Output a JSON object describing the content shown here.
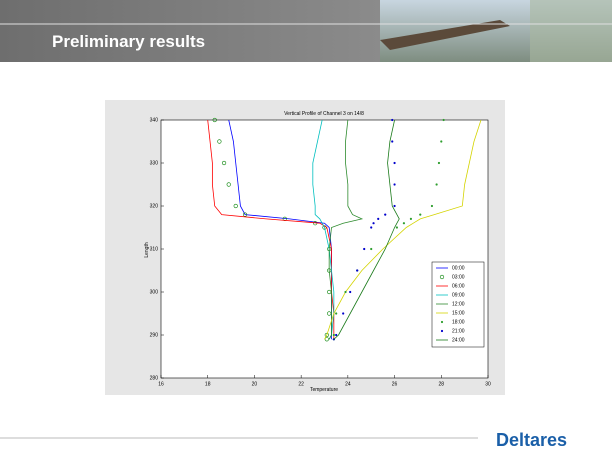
{
  "header": {
    "title": "Preliminary results"
  },
  "footer": {
    "logo": "Deltares"
  },
  "chart_data": {
    "type": "line",
    "title": "Vertical Profile of Channel 3 on 14/8",
    "x_label": "Temperature",
    "y_label": "Length",
    "y": [
      289,
      290,
      295,
      300,
      305,
      310,
      315,
      316,
      317,
      318,
      320,
      325,
      330,
      335,
      340
    ],
    "series": [
      {
        "name": "00:00",
        "color": "#0000ff",
        "marker": "none",
        "values": [
          23.3,
          23.3,
          23.3,
          23.3,
          23.3,
          23.3,
          23.2,
          23.0,
          21.5,
          19.6,
          19.4,
          19.3,
          19.2,
          19.1,
          18.9
        ]
      },
      {
        "name": "03:00",
        "color": "#008000",
        "marker": "o",
        "values": [
          23.1,
          23.1,
          23.2,
          23.2,
          23.2,
          23.2,
          23.0,
          22.6,
          21.3,
          19.6,
          19.2,
          18.9,
          18.7,
          18.5,
          18.3
        ]
      },
      {
        "name": "06:00",
        "color": "#ff0000",
        "marker": "none",
        "values": [
          23.4,
          23.4,
          23.4,
          23.3,
          23.3,
          23.3,
          23.1,
          22.8,
          20.5,
          18.6,
          18.3,
          18.2,
          18.2,
          18.1,
          18.0
        ]
      },
      {
        "name": "09:00",
        "color": "#00bfbf",
        "marker": "none",
        "values": [
          23.2,
          23.3,
          23.4,
          23.4,
          23.3,
          23.2,
          23.0,
          22.9,
          22.8,
          22.6,
          22.6,
          22.5,
          22.5,
          22.7,
          22.9
        ]
      },
      {
        "name": "12:00",
        "color": "#2e8b2e",
        "marker": "none",
        "values": [
          23.2,
          23.3,
          23.3,
          23.3,
          23.2,
          23.2,
          23.3,
          23.8,
          24.6,
          24.2,
          24.0,
          24.0,
          23.9,
          23.9,
          24.0
        ]
      },
      {
        "name": "15:00",
        "color": "#d4d400",
        "marker": "none",
        "values": [
          23.0,
          23.1,
          23.4,
          23.9,
          24.6,
          25.5,
          26.5,
          26.8,
          27.1,
          27.7,
          28.9,
          29.0,
          29.2,
          29.4,
          29.7
        ]
      },
      {
        "name": "18:00",
        "color": "#2e9e2e",
        "marker": ".",
        "values": [
          23.4,
          23.4,
          23.5,
          23.9,
          24.4,
          25.0,
          26.1,
          26.4,
          26.7,
          27.1,
          27.6,
          27.8,
          27.9,
          28.0,
          28.1
        ]
      },
      {
        "name": "21:00",
        "color": "#0000cc",
        "marker": ".",
        "values": [
          23.4,
          23.5,
          23.8,
          24.1,
          24.4,
          24.7,
          25.0,
          25.1,
          25.3,
          25.6,
          26.0,
          26.0,
          26.0,
          25.9,
          25.9
        ]
      },
      {
        "name": "24:00",
        "color": "#1a7a1a",
        "marker": "none",
        "values": [
          23.4,
          23.6,
          24.1,
          24.6,
          25.1,
          25.6,
          26.0,
          26.1,
          26.2,
          26.1,
          25.9,
          25.8,
          25.7,
          25.8,
          26.0
        ]
      }
    ],
    "xlim": [
      16,
      30
    ],
    "xticks": [
      16,
      18,
      20,
      22,
      24,
      26,
      28,
      30
    ],
    "ylim": [
      280,
      340
    ],
    "yticks": [
      280,
      290,
      300,
      310,
      320,
      330,
      340
    ],
    "legend": "right",
    "grid": false
  }
}
